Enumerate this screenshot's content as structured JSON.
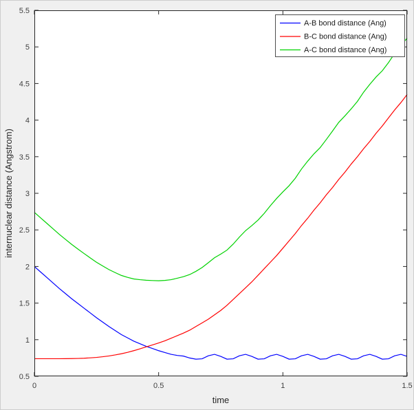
{
  "figure": {
    "background": "#f0f0f0",
    "plot_background": "#ffffff",
    "axis_color": "#262626",
    "tick_label_color": "#404040",
    "legend_border_color": "#4d4d4d",
    "window_border_color": "#cccccc"
  },
  "chart_data": {
    "type": "line",
    "title": "",
    "xlabel": "time",
    "ylabel": "internuclear distance (Angstrom)",
    "xlim": [
      0,
      1.5
    ],
    "ylim": [
      0.5,
      5.5
    ],
    "xticks": [
      0,
      0.5,
      1,
      1.5
    ],
    "xtick_labels": [
      "0",
      "0.5",
      "1",
      "1.5"
    ],
    "yticks": [
      0.5,
      1,
      1.5,
      2,
      2.5,
      3,
      3.5,
      4,
      4.5,
      5,
      5.5
    ],
    "ytick_labels": [
      "0.5",
      "1",
      "1.5",
      "2",
      "2.5",
      "3",
      "3.5",
      "4",
      "4.5",
      "5",
      "5.5"
    ],
    "grid": false,
    "legend_position": "top-right",
    "x": [
      0,
      0.025,
      0.05,
      0.075,
      0.1,
      0.125,
      0.15,
      0.175,
      0.2,
      0.225,
      0.25,
      0.275,
      0.3,
      0.325,
      0.35,
      0.375,
      0.4,
      0.425,
      0.45,
      0.475,
      0.5,
      0.525,
      0.55,
      0.575,
      0.6,
      0.625,
      0.65,
      0.675,
      0.7,
      0.725,
      0.75,
      0.775,
      0.8,
      0.825,
      0.85,
      0.875,
      0.9,
      0.925,
      0.95,
      0.975,
      1,
      1.025,
      1.05,
      1.075,
      1.1,
      1.125,
      1.15,
      1.175,
      1.2,
      1.225,
      1.25,
      1.275,
      1.3,
      1.325,
      1.35,
      1.375,
      1.4,
      1.425,
      1.45,
      1.475,
      1.5
    ],
    "series": [
      {
        "name": "A-B bond distance (Ang)",
        "color": "#0000ff",
        "values": [
          2,
          1.925,
          1.85,
          1.775,
          1.7,
          1.63,
          1.56,
          1.495,
          1.43,
          1.365,
          1.3,
          1.24,
          1.18,
          1.125,
          1.07,
          1.025,
          0.98,
          0.945,
          0.91,
          0.88,
          0.85,
          0.825,
          0.8,
          0.785,
          0.776,
          0.75,
          0.734,
          0.739,
          0.78,
          0.8,
          0.772,
          0.734,
          0.739,
          0.78,
          0.8,
          0.772,
          0.734,
          0.739,
          0.78,
          0.8,
          0.772,
          0.734,
          0.739,
          0.78,
          0.8,
          0.772,
          0.734,
          0.739,
          0.78,
          0.8,
          0.772,
          0.734,
          0.739,
          0.78,
          0.8,
          0.772,
          0.734,
          0.739,
          0.78,
          0.8,
          0.772
        ]
      },
      {
        "name": "B-C bond distance (Ang)",
        "color": "#ff0000",
        "values": [
          0.74,
          0.74,
          0.74,
          0.74,
          0.74,
          0.741,
          0.742,
          0.744,
          0.747,
          0.752,
          0.758,
          0.767,
          0.778,
          0.792,
          0.808,
          0.827,
          0.85,
          0.875,
          0.902,
          0.928,
          0.955,
          0.985,
          1.02,
          1.055,
          1.09,
          1.13,
          1.18,
          1.23,
          1.28,
          1.34,
          1.4,
          1.47,
          1.55,
          1.63,
          1.71,
          1.79,
          1.88,
          1.97,
          2.06,
          2.15,
          2.25,
          2.35,
          2.45,
          2.56,
          2.66,
          2.77,
          2.87,
          2.98,
          3.08,
          3.19,
          3.29,
          3.4,
          3.5,
          3.61,
          3.71,
          3.82,
          3.92,
          4.03,
          4.14,
          4.24,
          4.35
        ]
      },
      {
        "name": "A-C bond distance (Ang)",
        "color": "#00d200",
        "values": [
          2.74,
          2.665,
          2.59,
          2.515,
          2.44,
          2.371,
          2.302,
          2.239,
          2.177,
          2.117,
          2.058,
          2.007,
          1.958,
          1.917,
          1.878,
          1.852,
          1.83,
          1.82,
          1.812,
          1.808,
          1.805,
          1.81,
          1.82,
          1.84,
          1.861,
          1.89,
          1.934,
          1.986,
          2.052,
          2.12,
          2.169,
          2.224,
          2.306,
          2.402,
          2.49,
          2.559,
          2.634,
          2.726,
          2.832,
          2.93,
          3.019,
          3.104,
          3.206,
          3.332,
          3.44,
          3.539,
          3.624,
          3.736,
          3.852,
          3.97,
          4.059,
          4.154,
          4.256,
          4.382,
          4.49,
          4.589,
          4.674,
          4.786,
          4.912,
          5.02,
          5.119
        ]
      }
    ]
  }
}
